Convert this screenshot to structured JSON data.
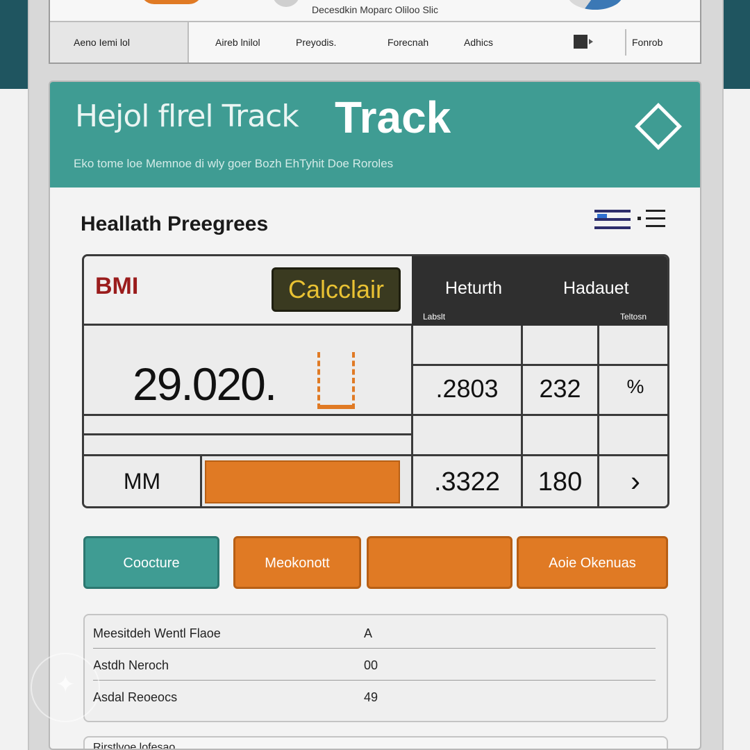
{
  "topnav": {
    "caption": "Decesdkin Moparc Oliloo Slic",
    "items": [
      {
        "label": "Aeno Iemi lol"
      },
      {
        "label": "Aireb lnilol"
      },
      {
        "label": "Preyodis."
      },
      {
        "label": "Forecnah"
      },
      {
        "label": "Adhics"
      },
      {
        "label": "Fonrob"
      }
    ]
  },
  "hero": {
    "title_light": "Hejol flrel Track",
    "title_bold": "Track",
    "subtitle": "Eko tome loe Memnoe di wly goer Bozh EhTyhit Doe Roroles",
    "icon": "diamond-icon"
  },
  "section": {
    "title": "Heallath Preegrees",
    "menu_icon": "list-menu-icon"
  },
  "bmi": {
    "label": "BMI",
    "calc_button": "Calcclair",
    "columns": [
      "Heturth",
      "Hadauet"
    ],
    "sub_left": "Labslt",
    "sub_right": "Teltosn",
    "big_value": "29.020.",
    "row1": [
      ".2803",
      "232",
      "%"
    ],
    "mm_label": "MM",
    "mm_bar_fill": 0.96,
    "row2": [
      ".3322",
      "180",
      "›"
    ]
  },
  "actions": [
    {
      "label": "Coocture",
      "color": "#3f9c93"
    },
    {
      "label": "Meokonott",
      "color": "#e07a24"
    },
    {
      "label": "",
      "color": "#e07a24"
    },
    {
      "label": "Aoie Okenuas",
      "color": "#e07a24"
    }
  ],
  "stats": [
    {
      "label": "Meesitdeh Wentl Flaoe",
      "value": "A"
    },
    {
      "label": "Astdh Neroch",
      "value": "00"
    },
    {
      "label": "Asdal Reoeocs",
      "value": "49"
    }
  ],
  "bottom": {
    "label": "Rirstlvoe lofesao"
  },
  "colors": {
    "teal": "#3f9c93",
    "orange": "#e07a24",
    "dark": "#2f2f2f",
    "bmi_red": "#9a1c1c"
  }
}
